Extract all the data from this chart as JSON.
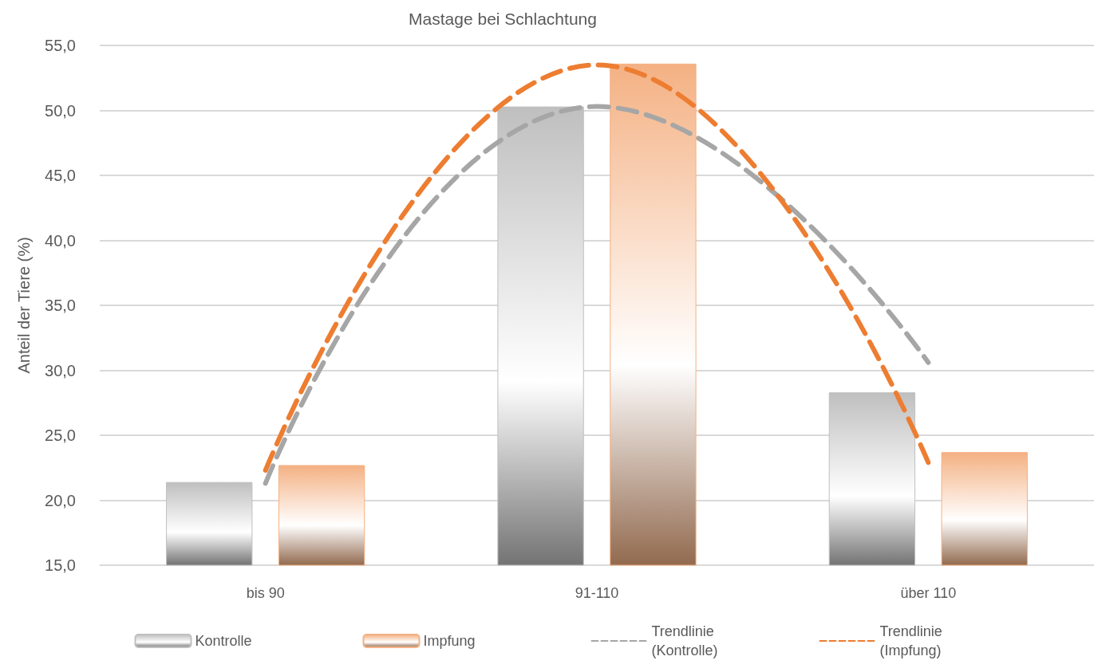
{
  "chart_data": {
    "type": "bar",
    "title": "Mastage bei Schlachtung",
    "ylabel": "Anteil der Tiere (%)",
    "categories": [
      "bis 90",
      "91-110",
      "über 110"
    ],
    "series": [
      {
        "name": "Kontrolle",
        "color": "#bfbfbf",
        "values": [
          21.4,
          50.3,
          28.3
        ]
      },
      {
        "name": "Impfung",
        "color": "#f4b183",
        "values": [
          22.7,
          53.6,
          23.7
        ]
      },
      {
        "name": "Trendlinie (Kontrolle)",
        "type": "line",
        "line_style": "dashed",
        "marker": "none",
        "color": "#a6a6a6",
        "values": [
          21.3,
          50.3,
          30.6
        ]
      },
      {
        "name": "Trendlinie (Impfung)",
        "type": "line",
        "line_style": "dashed",
        "marker": "none",
        "color": "#ed7d31",
        "values": [
          22.3,
          53.5,
          22.9
        ]
      }
    ],
    "ylim": [
      15,
      55
    ],
    "yticks": [
      {
        "value": 15,
        "label": "15,0"
      },
      {
        "value": 20,
        "label": "20,0"
      },
      {
        "value": 25,
        "label": "25,0"
      },
      {
        "value": 30,
        "label": "30,0"
      },
      {
        "value": 35,
        "label": "35,0"
      },
      {
        "value": 40,
        "label": "40,0"
      },
      {
        "value": 45,
        "label": "45,0"
      },
      {
        "value": 50,
        "label": "50,0"
      },
      {
        "value": 55,
        "label": "55,0"
      }
    ],
    "grid": "y",
    "legend": "bottom"
  }
}
